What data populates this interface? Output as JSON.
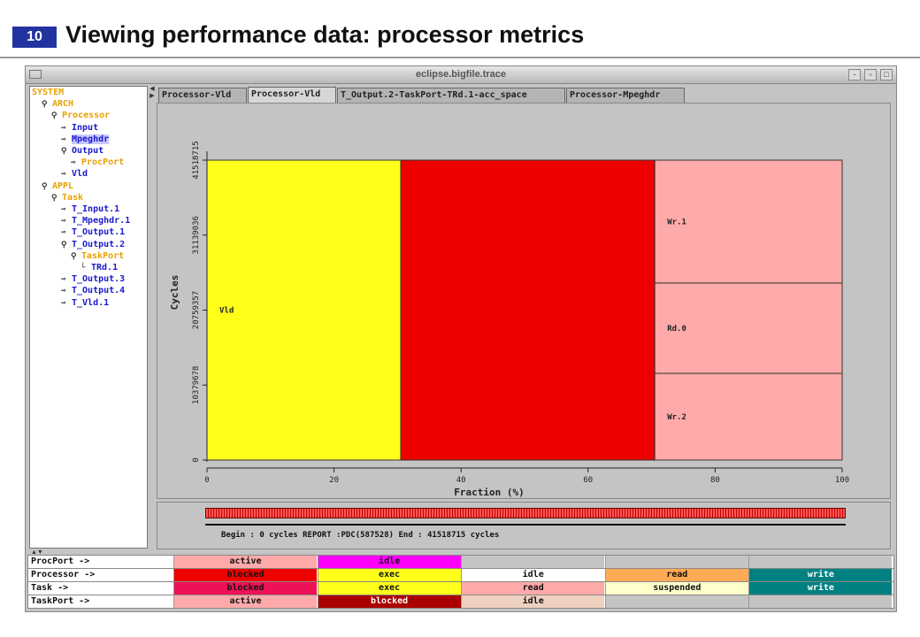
{
  "slide": {
    "number": "10",
    "title": "Viewing performance data: processor metrics"
  },
  "window": {
    "title": "eclipse.bigfile.trace",
    "buttons": [
      "-",
      "▫",
      "□"
    ]
  },
  "tree": [
    {
      "label": "SYSTEM",
      "color": "orange",
      "level": 0,
      "icon": ""
    },
    {
      "label": "ARCH",
      "color": "orange",
      "level": 1,
      "icon": "expanded-node-icon"
    },
    {
      "label": "Processor",
      "color": "orange",
      "level": 2,
      "icon": "expanded-node-icon"
    },
    {
      "label": "Input",
      "color": "blue",
      "level": 3,
      "icon": "collapsed-node-icon"
    },
    {
      "label": "Mpeghdr",
      "color": "blue",
      "level": 3,
      "icon": "collapsed-node-icon",
      "selected": true
    },
    {
      "label": "Output",
      "color": "blue",
      "level": 3,
      "icon": "expanded-node-icon"
    },
    {
      "label": "ProcPort",
      "color": "orange",
      "level": 4,
      "icon": "collapsed-node-icon"
    },
    {
      "label": "Vld",
      "color": "blue",
      "level": 3,
      "icon": "collapsed-node-icon"
    },
    {
      "label": "APPL",
      "color": "orange",
      "level": 1,
      "icon": "expanded-node-icon"
    },
    {
      "label": "Task",
      "color": "orange",
      "level": 2,
      "icon": "expanded-node-icon"
    },
    {
      "label": "T_Input.1",
      "color": "blue",
      "level": 3,
      "icon": "collapsed-node-icon"
    },
    {
      "label": "T_Mpeghdr.1",
      "color": "blue",
      "level": 3,
      "icon": "collapsed-node-icon"
    },
    {
      "label": "T_Output.1",
      "color": "blue",
      "level": 3,
      "icon": "collapsed-node-icon"
    },
    {
      "label": "T_Output.2",
      "color": "blue",
      "level": 3,
      "icon": "expanded-node-icon"
    },
    {
      "label": "TaskPort",
      "color": "orange",
      "level": 4,
      "icon": "expanded-node-icon"
    },
    {
      "label": "TRd.1",
      "color": "blue",
      "level": 5,
      "icon": "leaf-link-icon"
    },
    {
      "label": "T_Output.3",
      "color": "blue",
      "level": 3,
      "icon": "collapsed-node-icon"
    },
    {
      "label": "T_Output.4",
      "color": "blue",
      "level": 3,
      "icon": "collapsed-node-icon"
    },
    {
      "label": "T_Vld.1",
      "color": "blue",
      "level": 3,
      "icon": "collapsed-node-icon"
    }
  ],
  "tabs": [
    {
      "label": "Processor-Vld",
      "active": false
    },
    {
      "label": "Processor-Vld",
      "active": true
    },
    {
      "label": "T_Output.2-TaskPort-TRd.1-acc_space",
      "active": false
    },
    {
      "label": "Processor-Mpeghdr",
      "active": false
    }
  ],
  "chart_data": {
    "type": "bar",
    "stacked_horizontal_fraction": true,
    "xlabel": "Fraction (%)",
    "ylabel": "Cycles",
    "xlim": [
      0,
      100
    ],
    "ylim": [
      0,
      41518715
    ],
    "xticks": [
      0,
      20,
      40,
      60,
      80,
      100
    ],
    "yticks": [
      0,
      10379678,
      20759357,
      31139036,
      41518715
    ],
    "segments": [
      {
        "state": "exec",
        "label": "Vld",
        "x_start": 0,
        "x_end": 30.5,
        "color": "#ffff1a"
      },
      {
        "state": "blocked",
        "label": "",
        "x_start": 30.5,
        "x_end": 70.5,
        "color": "#ee0000"
      },
      {
        "state": "write",
        "label": "Wr.1",
        "x_start": 70.5,
        "x_end": 100,
        "y_start": 24500000,
        "y_end": 41518715,
        "color": "#ffaaaa"
      },
      {
        "state": "read",
        "label": "Rd.0",
        "x_start": 70.5,
        "x_end": 100,
        "y_start": 12000000,
        "y_end": 24500000,
        "color": "#ffaaaa"
      },
      {
        "state": "write",
        "label": "Wr.2",
        "x_start": 70.5,
        "x_end": 100,
        "y_start": 0,
        "y_end": 12000000,
        "color": "#ffaaaa"
      }
    ]
  },
  "timeline": {
    "status": "Begin : 0 cycles  REPORT :PDC(587528) End : 41518715 cycles"
  },
  "legend": [
    {
      "name": "ProcPort ->",
      "cells": [
        {
          "label": "active",
          "color": "#ffaaaa",
          "text": "#111111"
        },
        {
          "label": "idle",
          "color": "#ff00ff",
          "text": "#111111"
        },
        {
          "label": "",
          "color": "#c4c4c4",
          "text": "#111111"
        },
        {
          "label": "",
          "color": "#c4c4c4",
          "text": "#111111"
        },
        {
          "label": "",
          "color": "#c4c4c4",
          "text": "#111111"
        }
      ]
    },
    {
      "name": "Processor ->",
      "cells": [
        {
          "label": "blocked",
          "color": "#ee0000",
          "text": "#111111"
        },
        {
          "label": "exec",
          "color": "#ffff1a",
          "text": "#111111"
        },
        {
          "label": "idle",
          "color": "#ffffff",
          "text": "#111111"
        },
        {
          "label": "read",
          "color": "#ffaa55",
          "text": "#111111"
        },
        {
          "label": "write",
          "color": "#008080",
          "text": "#ffffff"
        }
      ]
    },
    {
      "name": "Task ->",
      "cells": [
        {
          "label": "blocked",
          "color": "#ee1155",
          "text": "#111111"
        },
        {
          "label": "exec",
          "color": "#ffff1a",
          "text": "#111111"
        },
        {
          "label": "read",
          "color": "#ffaaaa",
          "text": "#111111"
        },
        {
          "label": "suspended",
          "color": "#ffffcc",
          "text": "#111111"
        },
        {
          "label": "write",
          "color": "#008080",
          "text": "#ffffff"
        }
      ]
    },
    {
      "name": "TaskPort ->",
      "cells": [
        {
          "label": "active",
          "color": "#ffaaaa",
          "text": "#111111"
        },
        {
          "label": "blocked",
          "color": "#aa0000",
          "text": "#ffffff"
        },
        {
          "label": "idle",
          "color": "#f0d0c0",
          "text": "#111111"
        },
        {
          "label": "",
          "color": "#c4c4c4",
          "text": "#111111"
        },
        {
          "label": "",
          "color": "#c4c4c4",
          "text": "#111111"
        }
      ]
    }
  ]
}
